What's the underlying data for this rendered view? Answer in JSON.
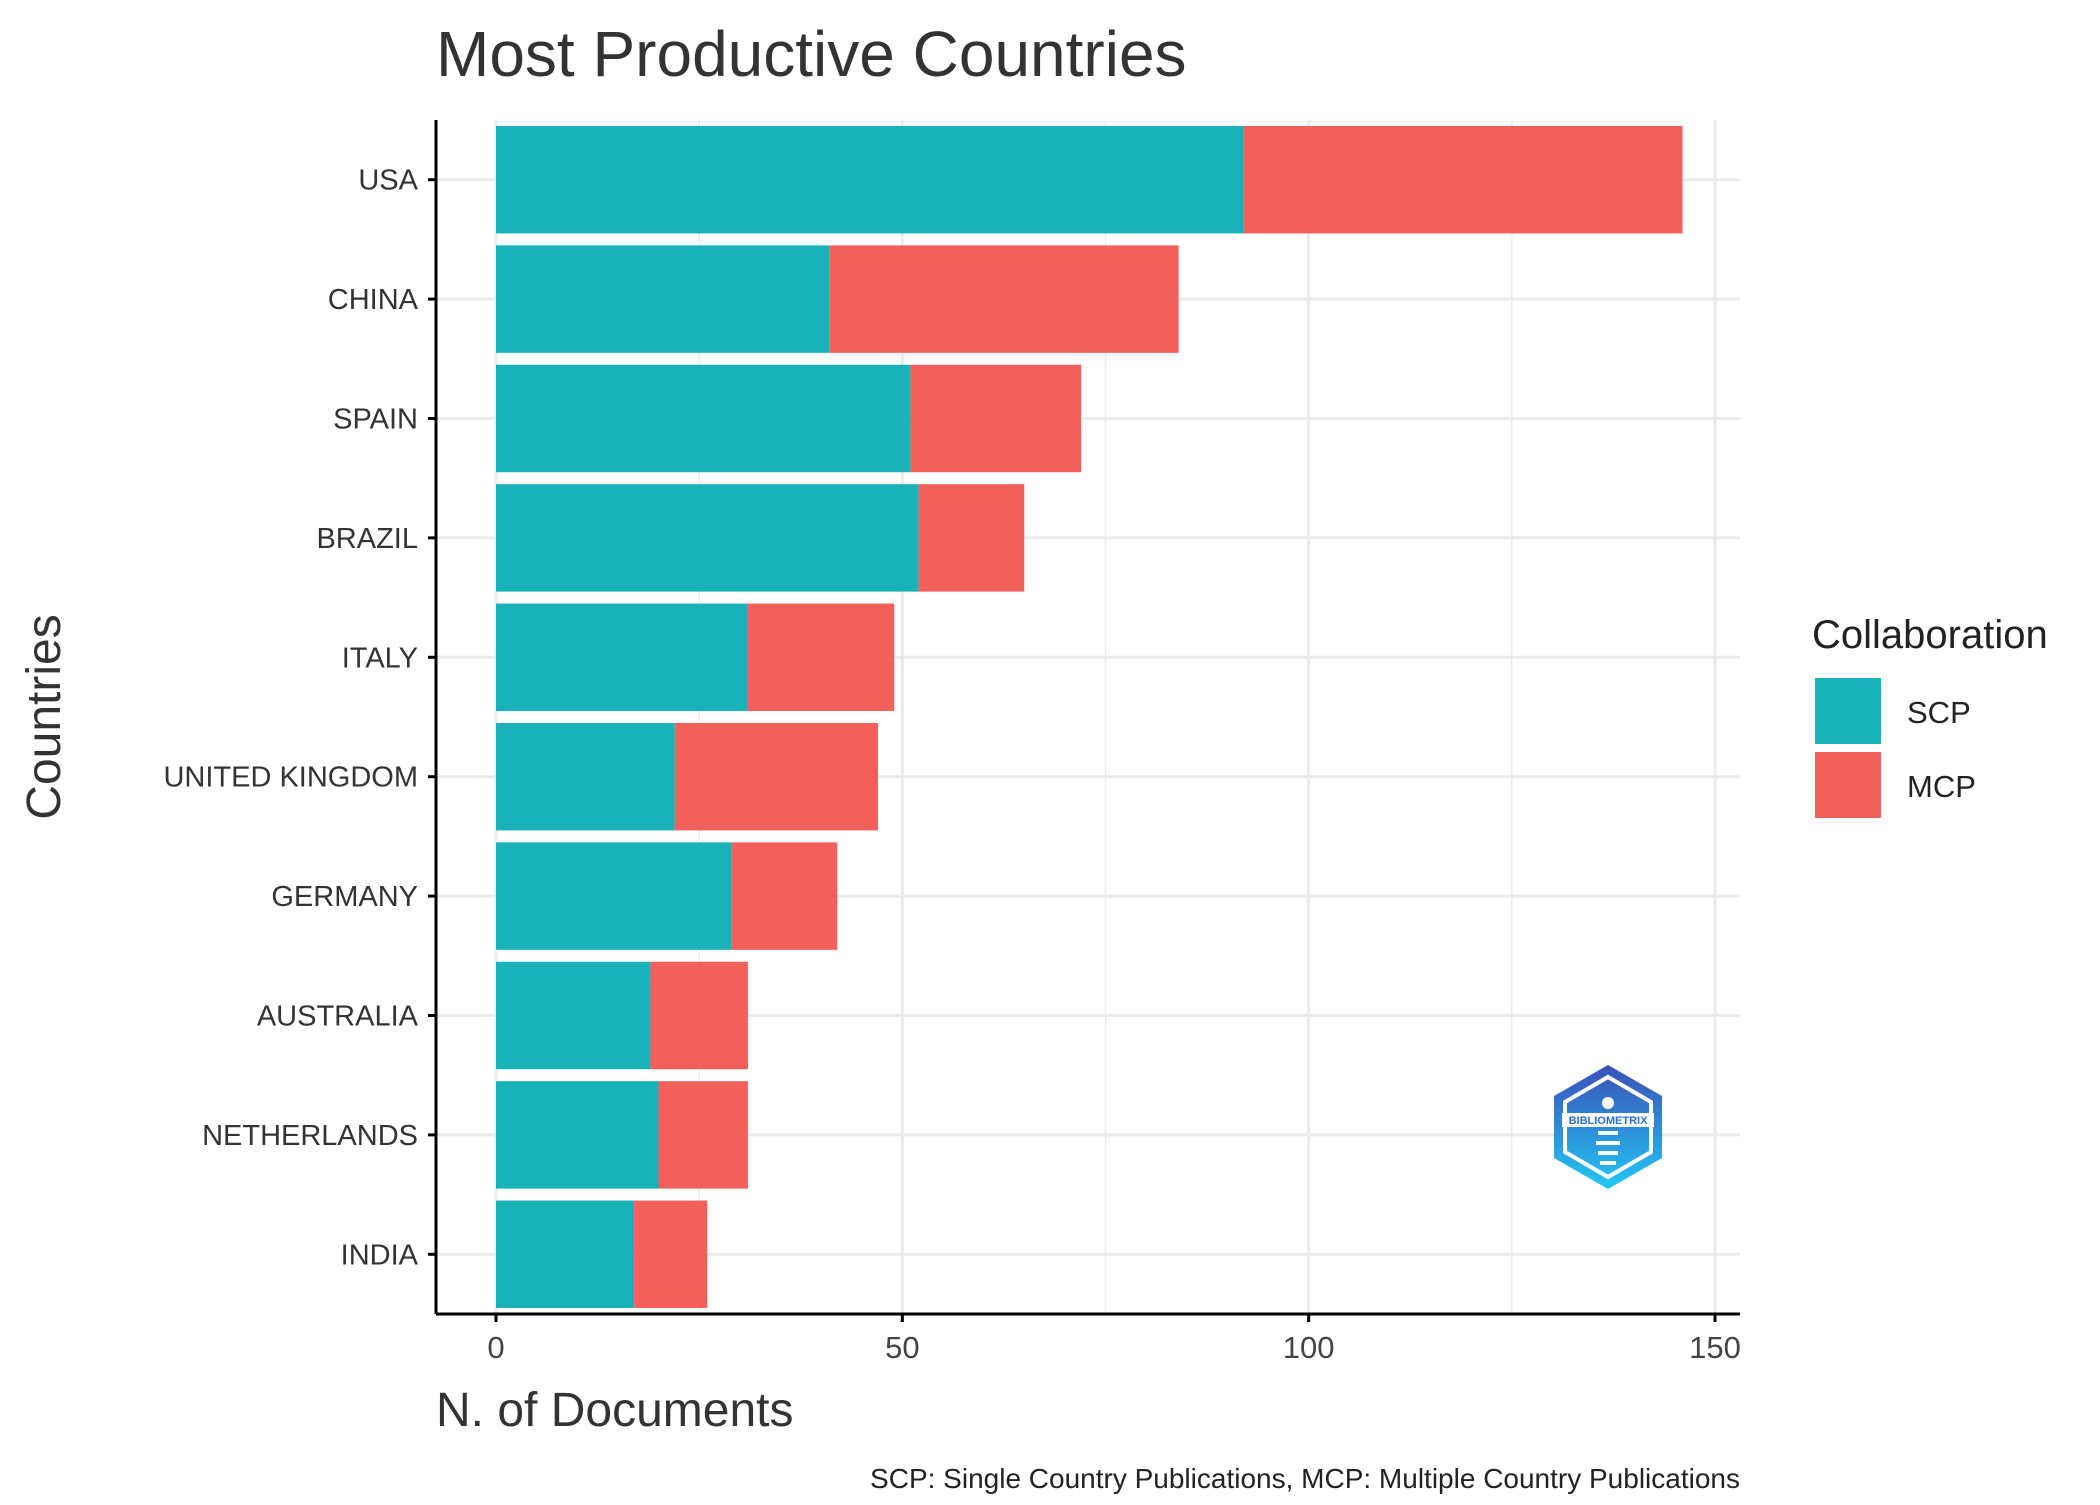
{
  "chart_data": {
    "type": "bar",
    "orientation": "horizontal",
    "stacked": true,
    "title": "Most Productive Countries",
    "xlabel": "N. of Documents",
    "ylabel": "Countries",
    "caption": "SCP: Single Country Publications, MCP: Multiple Country Publications",
    "xlim": [
      0,
      150
    ],
    "xticks": [
      0,
      50,
      100,
      150
    ],
    "grid": true,
    "categories": [
      "USA",
      "CHINA",
      "SPAIN",
      "BRAZIL",
      "ITALY",
      "UNITED KINGDOM",
      "GERMANY",
      "AUSTRALIA",
      "NETHERLANDS",
      "INDIA"
    ],
    "series": [
      {
        "name": "SCP",
        "color": "#19B2B8",
        "values": [
          92,
          41,
          51,
          52,
          31,
          22,
          29,
          19,
          20,
          17
        ]
      },
      {
        "name": "MCP",
        "color": "#F2605C",
        "values": [
          54,
          43,
          21,
          13,
          18,
          25,
          13,
          12,
          11,
          9
        ]
      }
    ],
    "legend": {
      "title": "Collaboration",
      "position": "right"
    },
    "logo_text": "BIBLIOMETRIX"
  }
}
